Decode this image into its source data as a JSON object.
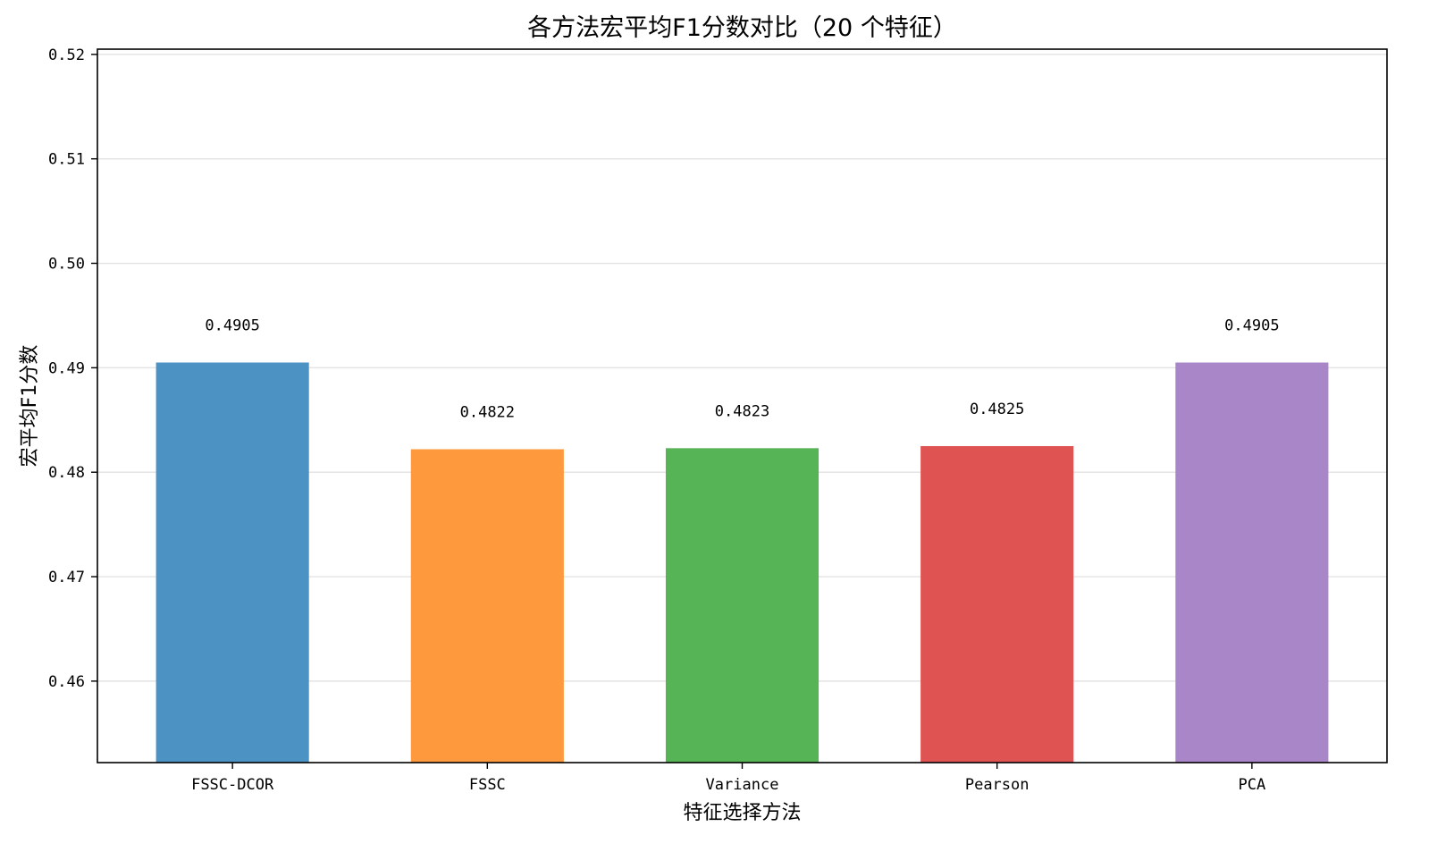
{
  "chart_data": {
    "type": "bar",
    "title": "各方法宏平均F1分数对比（20 个特征）",
    "xlabel": "特征选择方法",
    "ylabel": "宏平均F1分数",
    "categories": [
      "FSSC-DCOR",
      "FSSC",
      "Variance",
      "Pearson",
      "PCA"
    ],
    "values": [
      0.4905,
      0.4822,
      0.4823,
      0.4825,
      0.4905
    ],
    "value_labels": [
      "0.4905",
      "0.4822",
      "0.4823",
      "0.4825",
      "0.4905"
    ],
    "colors": [
      "#4c92c3",
      "#ff993e",
      "#56b356",
      "#df5353",
      "#a986c8"
    ],
    "ylim": [
      0.4522,
      0.5205
    ],
    "yticks": [
      0.46,
      0.47,
      0.48,
      0.49,
      0.5,
      0.51,
      0.52
    ],
    "ytick_labels": [
      "0.46",
      "0.47",
      "0.48",
      "0.49",
      "0.50",
      "0.51",
      "0.52"
    ],
    "grid": "y",
    "legend": "none"
  }
}
